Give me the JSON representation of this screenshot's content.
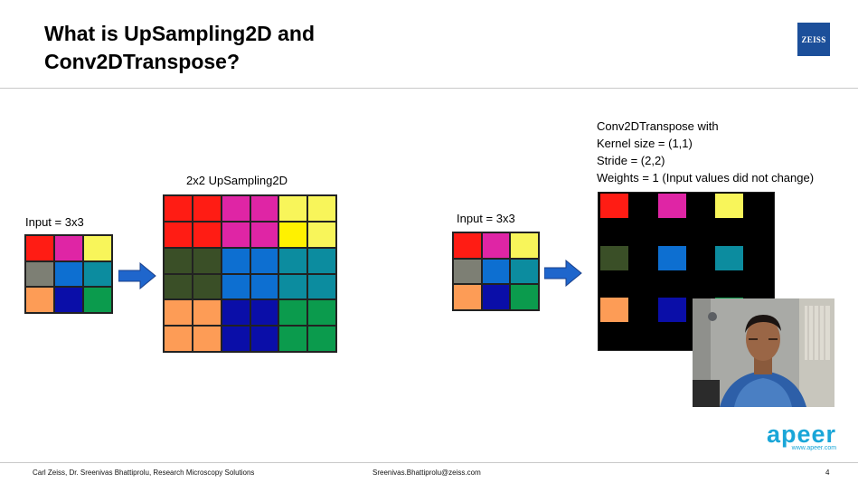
{
  "slide": {
    "title_line1": "What is UpSampling2D and",
    "title_line2": "Conv2DTranspose?",
    "logo_text": "ZEISS"
  },
  "colors": {
    "red": "#ff1c14",
    "magenta": "#df25a5",
    "yellow": "#f8f55a",
    "gray": "#7d7f74",
    "blue": "#0d6fd1",
    "teal": "#0c8c9f",
    "orange": "#fd9c56",
    "navy": "#0a0ea8",
    "green": "#0b9b4d",
    "darkgreen": "#3a4f27",
    "brightyellow": "#fff100"
  },
  "left_panel": {
    "input_label": "Input = 3x3",
    "upsampling_label": "2x2 UpSampling2D",
    "input_cells": [
      "red",
      "magenta",
      "yellow",
      "gray",
      "blue",
      "teal",
      "orange",
      "navy",
      "green"
    ],
    "output_cells": [
      "red",
      "red",
      "magenta",
      "magenta",
      "yellow",
      "yellow",
      "red",
      "red",
      "magenta",
      "magenta",
      "brightyellow",
      "yellow",
      "darkgreen",
      "darkgreen",
      "blue",
      "blue",
      "teal",
      "teal",
      "darkgreen",
      "darkgreen",
      "blue",
      "blue",
      "teal",
      "teal",
      "orange",
      "orange",
      "navy",
      "navy",
      "green",
      "green",
      "orange",
      "orange",
      "navy",
      "navy",
      "green",
      "green"
    ]
  },
  "right_panel": {
    "input_label": "Input = 3x3",
    "input_cells": [
      "red",
      "magenta",
      "yellow",
      "gray",
      "blue",
      "teal",
      "orange",
      "navy",
      "green"
    ],
    "conv_lines": [
      "Conv2DTranspose with",
      "Kernel size = (1,1)",
      "Stride = (2,2)",
      "Weights = 1 (Input values did not change)"
    ],
    "output_cells": [
      "red",
      "magenta",
      "yellow",
      "darkgreen",
      "blue",
      "teal",
      "orange",
      "navy",
      "green"
    ]
  },
  "footer": {
    "left": "Carl Zeiss, Dr. Sreenivas Bhattiprolu, Research Microscopy Solutions",
    "center": "Sreenivas.Bhattiprolu@zeiss.com",
    "page": "4",
    "brand": "apeer",
    "brand_url": "www.apeer.com"
  }
}
